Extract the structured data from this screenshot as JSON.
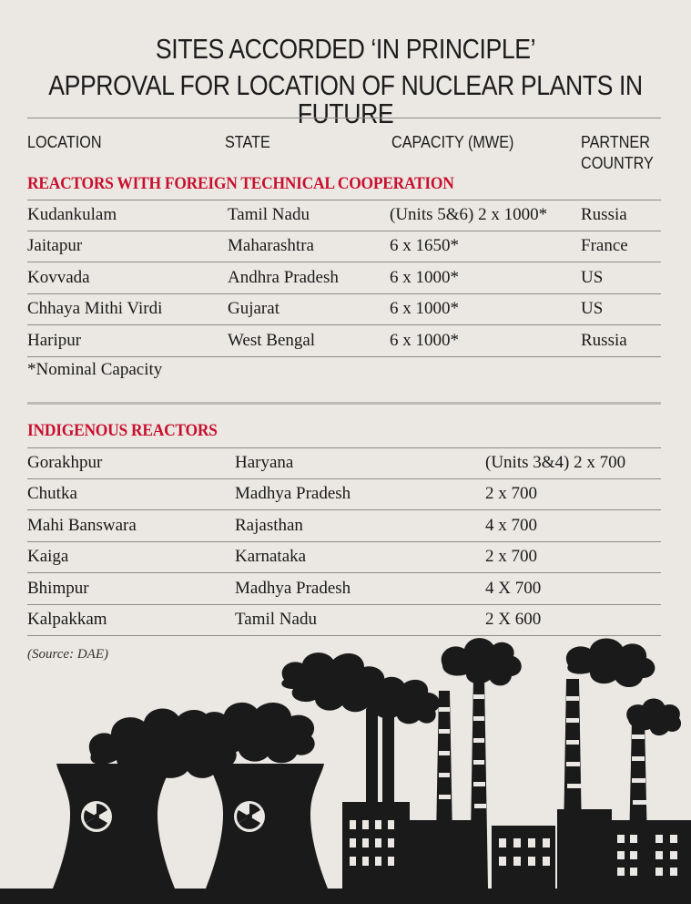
{
  "title": {
    "line1": "SITES ACCORDED ‘IN PRINCIPLE’",
    "line2": "APPROVAL FOR LOCATION OF NUCLEAR PLANTS IN FUTURE"
  },
  "headers": {
    "location": "LOCATION",
    "state": "STATE",
    "capacity": "CAPACITY (MWE)",
    "partner_line1": "PARTNER",
    "partner_line2": "COUNTRY"
  },
  "foreign": {
    "heading": "REACTORS WITH FOREIGN TECHNICAL COOPERATION",
    "rows": [
      {
        "location": "Kudankulam",
        "state": "Tamil Nadu",
        "capacity": "(Units 5&6) 2 x 1000*",
        "partner": "Russia"
      },
      {
        "location": "Jaitapur",
        "state": "Maharashtra",
        "capacity": "6 x 1650*",
        "partner": "France"
      },
      {
        "location": "Kovvada",
        "state": "Andhra Pradesh",
        "capacity": "6 x 1000*",
        "partner": "US"
      },
      {
        "location": "Chhaya Mithi Virdi",
        "state": "Gujarat",
        "capacity": "6 x 1000*",
        "partner": "US"
      },
      {
        "location": "Haripur",
        "state": "West Bengal",
        "capacity": "6 x 1000*",
        "partner": "Russia"
      }
    ],
    "footnote": "*Nominal Capacity"
  },
  "indigenous": {
    "heading": "INDIGENOUS REACTORS",
    "rows": [
      {
        "location": "Gorakhpur",
        "state": "Haryana",
        "capacity": "(Units 3&4) 2 x 700"
      },
      {
        "location": "Chutka",
        "state": "Madhya Pradesh",
        "capacity": "2 x 700"
      },
      {
        "location": "Mahi Banswara",
        "state": "Rajasthan",
        "capacity": "4 x 700"
      },
      {
        "location": "Kaiga",
        "state": "Karnataka",
        "capacity": "2 x 700"
      },
      {
        "location": "Bhimpur",
        "state": "Madhya Pradesh",
        "capacity": "4 X 700"
      },
      {
        "location": "Kalpakkam",
        "state": "Tamil Nadu",
        "capacity": "2 X 600"
      }
    ]
  },
  "source": "(Source: DAE)",
  "colors": {
    "background": "#ebe8e3",
    "heading_red": "#c8102e",
    "silhouette": "#1a1a1a"
  },
  "icons": [
    "radiation-icon",
    "cooling-tower-icon",
    "factory-chimney-icon",
    "smoke-cloud-icon"
  ]
}
